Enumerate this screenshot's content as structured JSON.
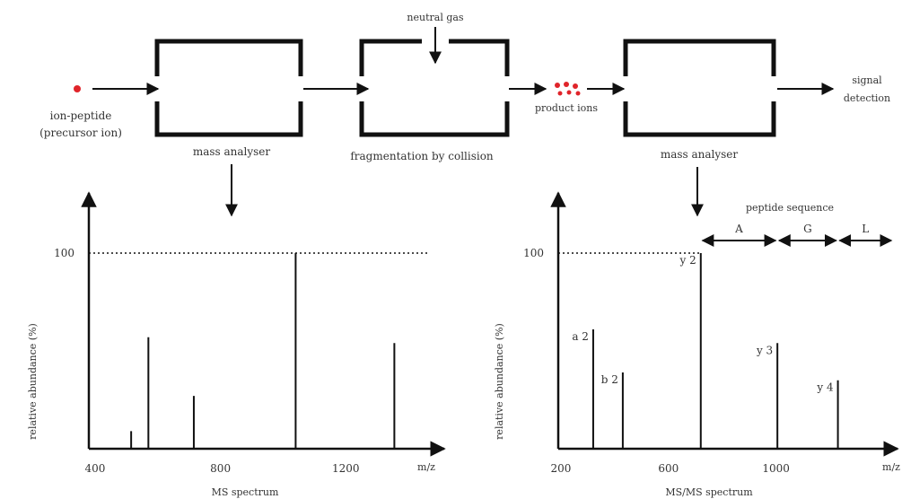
{
  "flow": {
    "neutral_gas": "neutral gas",
    "ion_peptide": "ion-peptide",
    "precursor": "(precursor ion)",
    "mass_analyser_1": "mass analyser",
    "fragmentation": "fragmentation by collision",
    "product_ions": "product ions",
    "mass_analyser_2": "mass analyser",
    "signal": "signal",
    "detection": "detection",
    "peptide_sequence": "peptide sequence"
  },
  "colors": {
    "ion": "#e0242a",
    "ink": "#111111"
  },
  "chart_data": [
    {
      "type": "bar",
      "title": "MS spectrum",
      "xlabel": "m/z",
      "ylabel": "relative abundance (%)",
      "xlim": [
        380,
        1500
      ],
      "ylim": [
        0,
        100
      ],
      "xticks": [
        400,
        800,
        1200
      ],
      "yticks": [
        100
      ],
      "reference_line": 100,
      "peaks": [
        {
          "x": 515,
          "y": 9,
          "label": ""
        },
        {
          "x": 570,
          "y": 57,
          "label": ""
        },
        {
          "x": 715,
          "y": 27,
          "label": ""
        },
        {
          "x": 1040,
          "y": 100,
          "label": ""
        },
        {
          "x": 1355,
          "y": 54,
          "label": ""
        }
      ]
    },
    {
      "type": "bar",
      "title": "MS/MS spectrum",
      "xlabel": "m/z",
      "ylabel": "relative abundance (%)",
      "xlim": [
        190,
        1435
      ],
      "ylim": [
        0,
        100
      ],
      "xticks": [
        200,
        600,
        1000
      ],
      "yticks": [
        100
      ],
      "reference_line": 100,
      "peaks": [
        {
          "x": 320,
          "y": 61,
          "label": "a 2"
        },
        {
          "x": 430,
          "y": 39,
          "label": "b 2"
        },
        {
          "x": 720,
          "y": 100,
          "label": "y 2"
        },
        {
          "x": 1005,
          "y": 54,
          "label": "y 3"
        },
        {
          "x": 1230,
          "y": 35,
          "label": "y 4"
        }
      ],
      "sequence": [
        "A",
        "G",
        "L"
      ]
    }
  ]
}
